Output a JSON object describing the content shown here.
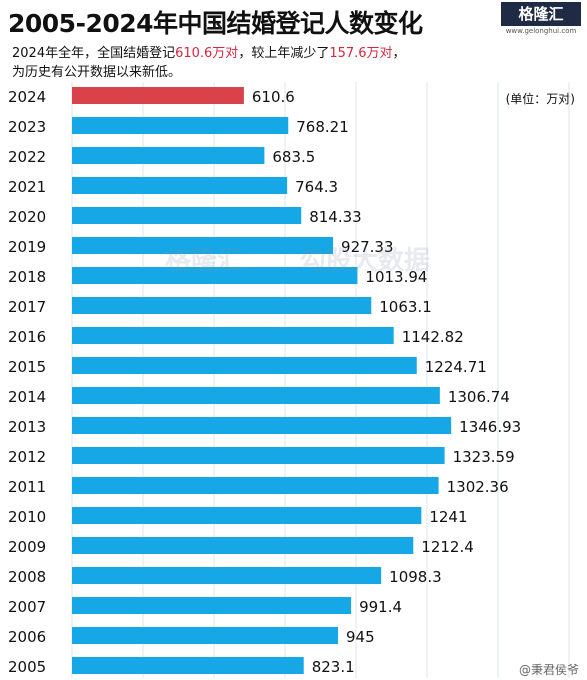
{
  "title": "2005-2024年中国结婚登记人数变化",
  "subtitle": {
    "line1_a": "2024年全年，全国结婚登记",
    "line1_b": "610.6万对",
    "line1_c": "，较上年减少了",
    "line1_d": "157.6万对",
    "line1_e": "，",
    "line2": "为历史有公开数据以来新低。"
  },
  "logo": {
    "text": "格隆汇",
    "url": "www.gelonghui.com"
  },
  "watermark": {
    "a": "格隆汇",
    "b": "勾股大数据"
  },
  "footer": "@秉君侯爷",
  "colors": {
    "highlight_bar": "#d9424a",
    "bar": "#16a8e6",
    "highlight_text": "#d7263d"
  },
  "chart_data": {
    "type": "bar",
    "orientation": "horizontal",
    "unit": "(单位：万对)",
    "categories": [
      "2024",
      "2023",
      "2022",
      "2021",
      "2020",
      "2019",
      "2018",
      "2017",
      "2016",
      "2015",
      "2014",
      "2013",
      "2012",
      "2011",
      "2010",
      "2009",
      "2008",
      "2007",
      "2006",
      "2005"
    ],
    "values": [
      610.6,
      768.21,
      683.5,
      764.3,
      814.33,
      927.33,
      1013.94,
      1063.1,
      1142.82,
      1224.71,
      1306.74,
      1346.93,
      1323.59,
      1302.36,
      1241,
      1212.4,
      1098.3,
      991.4,
      945,
      823.1
    ],
    "value_labels": [
      "610.6",
      "768.21",
      "683.5",
      "764.3",
      "814.33",
      "927.33",
      "1013.94",
      "1063.1",
      "1142.82",
      "1224.71",
      "1306.74",
      "1346.93",
      "1323.59",
      "1302.36",
      "1241",
      "1212.4",
      "1098.3",
      "991.4",
      "945",
      "823.1"
    ],
    "highlight_index": 0,
    "grid": true
  }
}
